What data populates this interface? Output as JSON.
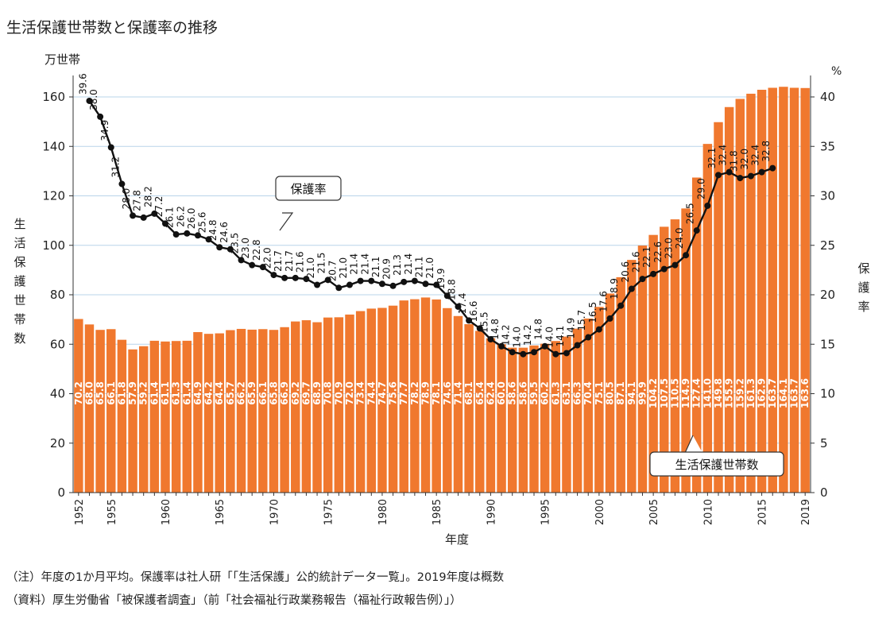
{
  "chart_data": {
    "type": "bar+line",
    "title": "生活保護世帯数と保護率の推移",
    "xlabel": "年度",
    "ylabel_left": "生活保護世帯数",
    "ylabel_right": "保護率",
    "unit_left": "万世帯",
    "unit_right": "%",
    "ylim_left": [
      0,
      160
    ],
    "ylim_right": [
      0,
      40
    ],
    "yticks_left": [
      0,
      20,
      40,
      60,
      80,
      100,
      120,
      140,
      160
    ],
    "yticks_right": [
      0,
      5,
      10,
      15,
      20,
      25,
      30,
      35,
      40
    ],
    "grid": true,
    "x_tick_labels": [
      {
        "year": 1952,
        "label": "1952"
      },
      {
        "year": 1955,
        "label": "1955"
      },
      {
        "year": 1960,
        "label": "1960"
      },
      {
        "year": 1965,
        "label": "1965"
      },
      {
        "year": 1970,
        "label": "1970"
      },
      {
        "year": 1975,
        "label": "1975"
      },
      {
        "year": 1980,
        "label": "1980"
      },
      {
        "year": 1985,
        "label": "1985"
      },
      {
        "year": 1990,
        "label": "1990"
      },
      {
        "year": 1995,
        "label": "1995"
      },
      {
        "year": 2000,
        "label": "2000"
      },
      {
        "year": 2005,
        "label": "2005"
      },
      {
        "year": 2010,
        "label": "2010"
      },
      {
        "year": 2015,
        "label": "2015"
      },
      {
        "year": 2019,
        "label": "2019"
      }
    ],
    "bar_series": {
      "name": "生活保護世帯数",
      "years": [
        1952,
        1953,
        1954,
        1955,
        1956,
        1957,
        1958,
        1959,
        1960,
        1961,
        1962,
        1963,
        1964,
        1965,
        1966,
        1967,
        1968,
        1969,
        1970,
        1971,
        1972,
        1973,
        1974,
        1975,
        1976,
        1977,
        1978,
        1979,
        1980,
        1981,
        1982,
        1983,
        1984,
        1985,
        1986,
        1987,
        1988,
        1989,
        1990,
        1991,
        1992,
        1993,
        1994,
        1995,
        1996,
        1997,
        1998,
        1999,
        2000,
        2001,
        2002,
        2003,
        2004,
        2005,
        2006,
        2007,
        2008,
        2009,
        2010,
        2011,
        2012,
        2013,
        2014,
        2015,
        2016,
        2017,
        2018,
        2019
      ],
      "values": [
        70.2,
        68.0,
        65.8,
        66.1,
        61.8,
        57.9,
        59.2,
        61.4,
        61.1,
        61.3,
        61.4,
        64.9,
        64.2,
        64.4,
        65.7,
        66.2,
        65.9,
        66.1,
        65.8,
        66.9,
        69.2,
        69.7,
        68.9,
        70.8,
        70.9,
        72.0,
        73.4,
        74.4,
        74.7,
        75.6,
        77.7,
        78.2,
        78.9,
        78.1,
        74.6,
        71.4,
        68.1,
        65.4,
        62.4,
        60.0,
        58.6,
        58.6,
        59.5,
        60.2,
        61.3,
        63.1,
        66.3,
        70.4,
        75.1,
        80.5,
        87.1,
        94.1,
        99.9,
        104.2,
        107.5,
        110.5,
        114.9,
        127.4,
        141.0,
        149.8,
        155.9,
        159.2,
        161.3,
        162.9,
        163.7,
        164.1,
        163.7,
        163.6
      ],
      "value_labels": [
        "70.2",
        "68.0",
        "65.8",
        "66.1",
        "61.8",
        "57.9",
        "59.2",
        "61.4",
        "61.1",
        "61.3",
        "61.4",
        "64.9",
        "64.2",
        "64.4",
        "65.7",
        "66.2",
        "65.9",
        "66.1",
        "65.8",
        "66.9",
        "69.2",
        "69.7",
        "68.9",
        "70.8",
        "70.9",
        "72.0",
        "73.4",
        "74.4",
        "74.7",
        "75.6",
        "77.7",
        "78.2",
        "78.9",
        "78.1",
        "74.6",
        "71.4",
        "68.1",
        "65.4",
        "62.4",
        "60.0",
        "58.6",
        "58.6",
        "59.5",
        "60.2",
        "61.3",
        "63.1",
        "66.3",
        "70.4",
        "75.1",
        "80.5",
        "87.1",
        "94.1",
        "99.9",
        "104.2",
        "107.5",
        "110.5",
        "114.9",
        "127.4",
        "141.0",
        "149.8",
        "155.9",
        "159.2",
        "161.3",
        "162.9",
        "163.7",
        "164.1",
        "163.7",
        "163.6"
      ],
      "color": "#F0782E",
      "callout": "生活保護世帯数"
    },
    "line_series": {
      "name": "保護率",
      "years": [
        1953,
        1954,
        1955,
        1956,
        1957,
        1958,
        1959,
        1960,
        1961,
        1962,
        1963,
        1964,
        1965,
        1966,
        1967,
        1968,
        1969,
        1970,
        1971,
        1972,
        1973,
        1974,
        1975,
        1976,
        1977,
        1978,
        1979,
        1980,
        1981,
        1982,
        1983,
        1984,
        1985,
        1986,
        1987,
        1988,
        1989,
        1990,
        1991,
        1992,
        1993,
        1994,
        1995,
        1996,
        1997,
        1998,
        1999,
        2000,
        2001,
        2002,
        2003,
        2004,
        2005,
        2006,
        2007,
        2008,
        2009,
        2010,
        2011,
        2012,
        2013,
        2014,
        2015,
        2016
      ],
      "values": [
        39.6,
        38.0,
        34.9,
        31.2,
        28.0,
        27.8,
        28.2,
        27.2,
        26.1,
        26.2,
        26.0,
        25.6,
        24.8,
        24.6,
        23.5,
        23.0,
        22.8,
        22.0,
        21.7,
        21.7,
        21.6,
        21.0,
        21.5,
        20.7,
        21.0,
        21.4,
        21.4,
        21.1,
        20.9,
        21.3,
        21.4,
        21.1,
        21.0,
        19.9,
        18.8,
        17.4,
        16.6,
        15.5,
        14.8,
        14.2,
        14.0,
        14.2,
        14.8,
        14.0,
        14.1,
        14.9,
        15.7,
        16.5,
        17.6,
        18.9,
        20.6,
        21.6,
        22.1,
        22.6,
        23.0,
        24.0,
        26.5,
        29.0,
        32.1,
        32.4,
        31.8,
        32.0,
        32.4,
        32.8
      ],
      "value_labels": [
        "39.6",
        "38.0",
        "34.9",
        "31.2",
        "28.0",
        "27.8",
        "28.2",
        "27.2",
        "26.1",
        "26.2",
        "26.0",
        "25.6",
        "24.8",
        "24.6",
        "23.5",
        "23.0",
        "22.8",
        "22.0",
        "21.7",
        "21.7",
        "21.6",
        "21.0",
        "21.5",
        "20.7",
        "21.0",
        "21.4",
        "21.4",
        "21.1",
        "20.9",
        "21.3",
        "21.4",
        "21.1",
        "21.0",
        "19.9",
        "18.8",
        "17.4",
        "16.6",
        "15.5",
        "14.8",
        "14.2",
        "14.0",
        "14.2",
        "14.8",
        "14.0",
        "14.1",
        "14.9",
        "15.7",
        "16.5",
        "17.6",
        "18.9",
        "20.6",
        "21.6",
        "22.1",
        "22.6",
        "23.0",
        "24.0",
        "26.5",
        "29.0",
        "32.1",
        "32.4",
        "31.8",
        "32.0",
        "32.4",
        "32.8"
      ],
      "color": "#111111",
      "callout": "保護率"
    }
  },
  "notes": {
    "note1": "（注）年度の1か月平均。保護率は社人研「「生活保護」公的統計データ一覧」。2019年度は概数",
    "note2": "（資料）厚生労働省「被保護者調査」（前「社会福祉行政業務報告（福祉行政報告例）」）"
  }
}
